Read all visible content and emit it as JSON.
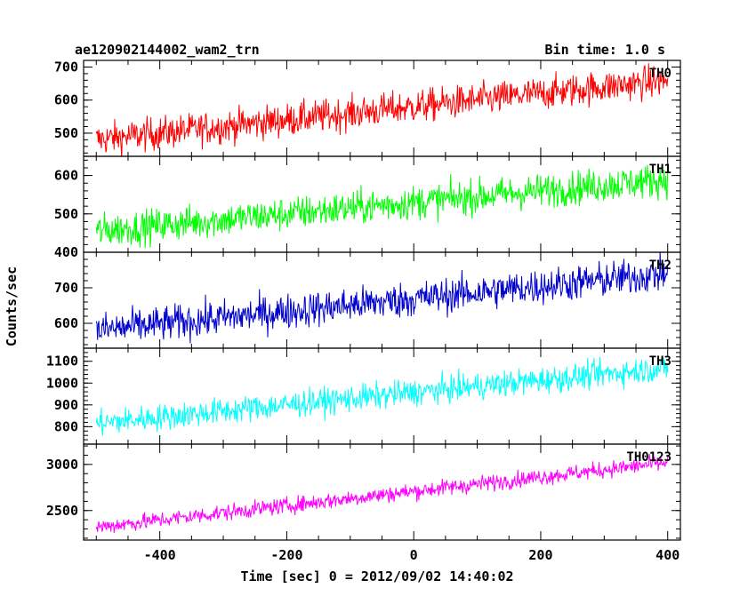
{
  "header": {
    "title": "ae120902144002_wam2_trn",
    "bin_time": "Bin time: 1.0 s"
  },
  "chart_data": {
    "type": "line",
    "xlabel": "Time [sec] 0 = 2012/09/02 14:40:02",
    "ylabel": "Counts/sec",
    "xlim": [
      -520,
      420
    ],
    "xticks": [
      -400,
      -200,
      0,
      200,
      400
    ],
    "x_range": [
      -500,
      400
    ],
    "bin_seconds": 1.0,
    "panels": [
      {
        "name": "TH0",
        "color": "#ff0000",
        "ylim": [
          430,
          720
        ],
        "yticks": [
          500,
          600,
          700
        ],
        "trend_start": 480,
        "trend_end": 660,
        "noise": 45
      },
      {
        "name": "TH1",
        "color": "#00ff00",
        "ylim": [
          400,
          650
        ],
        "yticks": [
          400,
          500,
          600
        ],
        "trend_start": 455,
        "trend_end": 590,
        "noise": 40
      },
      {
        "name": "TH2",
        "color": "#0000cc",
        "ylim": [
          530,
          800
        ],
        "yticks": [
          600,
          700
        ],
        "trend_start": 580,
        "trend_end": 740,
        "noise": 45
      },
      {
        "name": "TH3",
        "color": "#00ffff",
        "ylim": [
          720,
          1160
        ],
        "yticks": [
          800,
          900,
          1000,
          1100
        ],
        "trend_start": 815,
        "trend_end": 1070,
        "noise": 55
      },
      {
        "name": "TH0123",
        "color": "#ff00ff",
        "ylim": [
          2180,
          3220
        ],
        "yticks": [
          2500,
          3000
        ],
        "trend_start": 2320,
        "trend_end": 3020,
        "noise": 80
      }
    ]
  }
}
